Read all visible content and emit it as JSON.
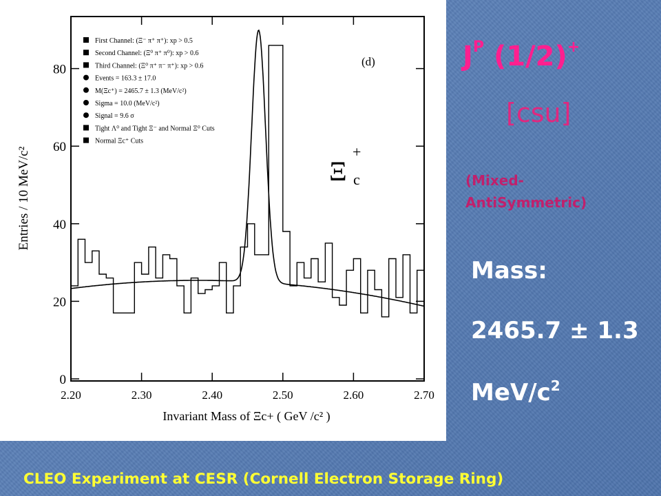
{
  "slide": {
    "jp": {
      "base": "J",
      "sup_p": "P",
      "mid": " (1/2)",
      "sup_plus": "+"
    },
    "quark_content": "[csu]",
    "symmetry": "(Mixed-\nAntiSymmetric)",
    "mass_label": "Mass:",
    "mass_value": "2465.7 ± 1.3",
    "mass_unit": {
      "base": "MeV/c",
      "sup": "2"
    },
    "footer": "CLEO Experiment  at CESR (Cornell Electron Storage Ring)"
  },
  "colors": {
    "jp": "#ff1f8f",
    "quark": "#e0287f",
    "symmetry": "#c0206c",
    "footer": "#ffff33",
    "background": "#5a7fb6"
  },
  "chart_data": {
    "type": "line",
    "panel_label": "(d)",
    "particle_label": {
      "symbol": "Ξ",
      "sup": "+",
      "sub": "c"
    },
    "ylabel": "Entries / 10  MeV/c²",
    "xlabel": "Invariant Mass of  Ξc+ ( GeV /c² )",
    "xlim": [
      2.2,
      2.7
    ],
    "ylim": [
      0,
      92
    ],
    "x_ticks": [
      2.2,
      2.3,
      2.4,
      2.5,
      2.6,
      2.7
    ],
    "x_tick_labels": [
      "2.20",
      "2.30",
      "2.40",
      "2.50",
      "2.60",
      "2.70"
    ],
    "y_ticks": [
      0,
      20,
      40,
      60,
      80
    ],
    "y_tick_labels": [
      "0",
      "20",
      "40",
      "60",
      "80"
    ],
    "legend": [
      {
        "marker": "square",
        "text": "First Channel: (Ξ⁻ π⁺ π⁺): xp > 0.5"
      },
      {
        "marker": "square",
        "text": "Second Channel: (Ξ⁰ π⁺ π⁰): xp > 0.6"
      },
      {
        "marker": "square",
        "text": "Third Channel: (Ξ⁰ π⁺ π⁻ π⁺): xp > 0.6"
      },
      {
        "marker": "circle",
        "text": "Events = 163.3 ± 17.0"
      },
      {
        "marker": "circle",
        "text": "M(Ξc⁺) = 2465.7 ± 1.3 (MeV/c²)"
      },
      {
        "marker": "circle",
        "text": "Sigma = 10.0 (MeV/c²)"
      },
      {
        "marker": "circle",
        "text": "Signal = 9.6 σ"
      },
      {
        "marker": "square",
        "text": "Tight Λ⁰ and Tight Ξ⁻ and Normal Ξ⁰ Cuts"
      },
      {
        "marker": "square",
        "text": "Normal Ξc⁺ Cuts"
      }
    ],
    "histogram": {
      "bin_width": 0.01,
      "x_start": 2.2,
      "values": [
        24,
        36,
        30,
        33,
        27,
        26,
        17,
        17,
        17,
        30,
        27,
        34,
        26,
        32,
        31,
        24,
        17,
        26,
        22,
        23,
        24,
        30,
        17,
        24,
        34,
        40,
        32,
        32,
        86,
        86,
        38,
        24,
        30,
        26,
        31,
        25,
        35,
        21,
        19,
        28,
        31,
        17,
        28,
        23,
        16,
        31,
        21,
        32,
        17,
        28
      ]
    },
    "fit": {
      "background": {
        "a": 25.4,
        "c": 2.38,
        "b": 65
      },
      "peak": {
        "mean": 2.4657,
        "sigma": 0.0099,
        "amplitude": 65
      }
    }
  }
}
